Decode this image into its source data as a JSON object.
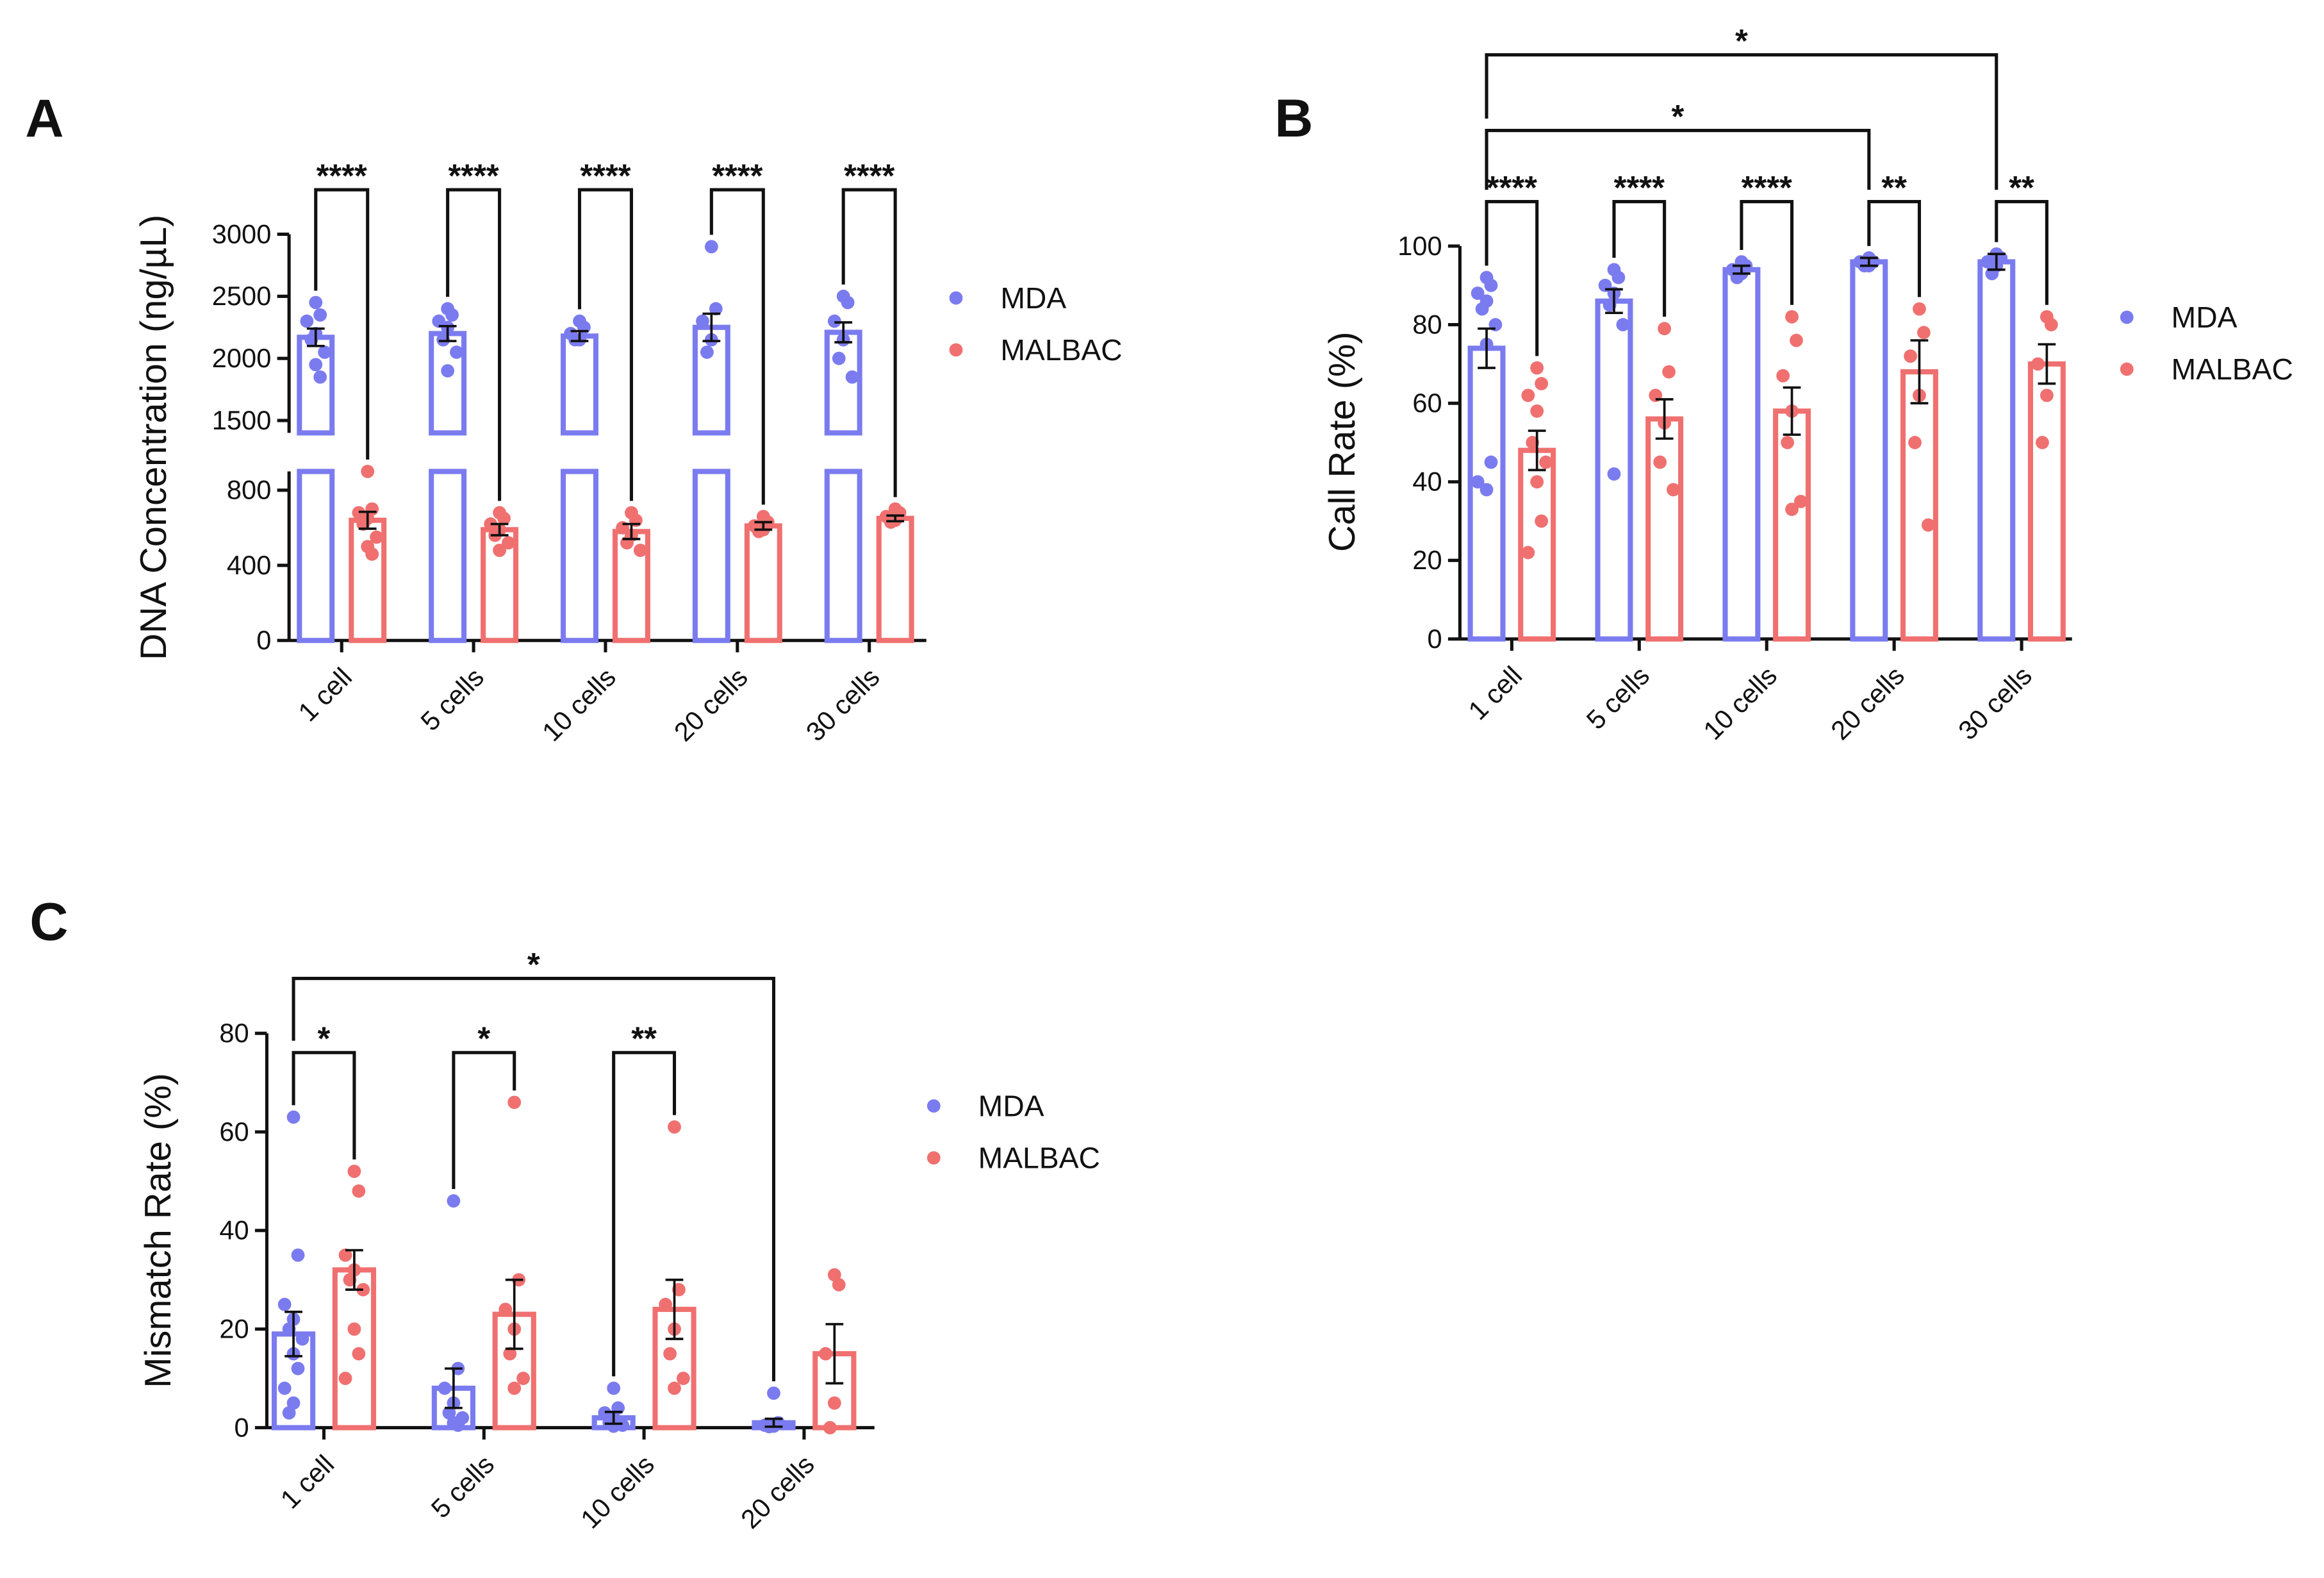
{
  "chart_data": [
    {
      "type": "bar",
      "title": "A",
      "y_label": "DNA Concentration (ng/µL)",
      "categories": [
        "1 cell",
        "5 cells",
        "10 cells",
        "20 cells",
        "30 cells"
      ],
      "ylim": [
        0,
        3000
      ],
      "ybreak": [
        900,
        1400
      ],
      "yticks": [
        0,
        400,
        800,
        1500,
        2000,
        2500,
        3000
      ],
      "series": [
        {
          "name": "MDA",
          "color": "#7b7bf0",
          "values": [
            2170,
            2200,
            2180,
            2250,
            2210
          ],
          "errors": [
            70,
            60,
            40,
            110,
            80
          ],
          "points": [
            [
              2450,
              2350,
              2300,
              2200,
              2150,
              2050,
              1950,
              1850
            ],
            [
              2400,
              2350,
              2300,
              2250,
              2150,
              2050,
              1900
            ],
            [
              2300,
              2250,
              2200,
              2150,
              2150
            ],
            [
              2900,
              2400,
              2300,
              2150,
              2050
            ],
            [
              2500,
              2450,
              2300,
              2150,
              2000,
              1850
            ]
          ]
        },
        {
          "name": "MALBAC",
          "color": "#f07070",
          "values": [
            640,
            590,
            580,
            610,
            650
          ],
          "errors": [
            45,
            30,
            40,
            20,
            15
          ],
          "points": [
            [
              900,
              700,
              680,
              650,
              620,
              550,
              500,
              460
            ],
            [
              680,
              650,
              620,
              590,
              560,
              520,
              480
            ],
            [
              680,
              640,
              600,
              560,
              520,
              480
            ],
            [
              660,
              630,
              610,
              590,
              580
            ],
            [
              700,
              680,
              660,
              640,
              630
            ]
          ]
        }
      ],
      "annotations": [
        {
          "text": "****",
          "category": "1 cell"
        },
        {
          "text": "****",
          "category": "5 cells"
        },
        {
          "text": "****",
          "category": "10 cells"
        },
        {
          "text": "****",
          "category": "20 cells"
        },
        {
          "text": "****",
          "category": "30 cells"
        }
      ]
    },
    {
      "type": "bar",
      "title": "B",
      "y_label": "Call Rate (%)",
      "categories": [
        "1 cell",
        "5 cells",
        "10 cells",
        "20 cells",
        "30 cells"
      ],
      "ylim": [
        0,
        100
      ],
      "yticks": [
        0,
        20,
        40,
        60,
        80,
        100
      ],
      "series": [
        {
          "name": "MDA",
          "color": "#7b7bf0",
          "values": [
            74,
            86,
            94,
            96,
            96
          ],
          "errors": [
            5,
            3,
            1,
            1,
            2
          ],
          "points": [
            [
              92,
              90,
              88,
              86,
              84,
              80,
              75,
              45,
              40,
              38
            ],
            [
              94,
              92,
              90,
              88,
              85,
              80,
              42
            ],
            [
              96,
              95,
              94,
              93,
              92
            ],
            [
              97,
              96,
              96,
              95,
              95
            ],
            [
              98,
              97,
              96,
              95,
              93
            ]
          ]
        },
        {
          "name": "MALBAC",
          "color": "#f07070",
          "values": [
            48,
            56,
            58,
            68,
            70
          ],
          "errors": [
            5,
            5,
            6,
            8,
            5
          ],
          "points": [
            [
              69,
              65,
              62,
              58,
              50,
              45,
              40,
              30,
              22
            ],
            [
              79,
              68,
              62,
              55,
              45,
              38
            ],
            [
              82,
              76,
              67,
              58,
              50,
              35,
              33
            ],
            [
              84,
              78,
              72,
              62,
              50,
              29
            ],
            [
              82,
              80,
              70,
              62,
              50
            ]
          ]
        }
      ],
      "annotations": [
        {
          "text": "****",
          "category": "1 cell"
        },
        {
          "text": "****",
          "category": "5 cells"
        },
        {
          "text": "****",
          "category": "10 cells"
        },
        {
          "text": "**",
          "category": "20 cells"
        },
        {
          "text": "**",
          "category": "30 cells"
        },
        {
          "text": "*",
          "from": "1 cell",
          "to": "20 cells"
        },
        {
          "text": "*",
          "from": "1 cell",
          "to": "30 cells"
        }
      ]
    },
    {
      "type": "bar",
      "title": "C",
      "y_label": "Mismatch Rate (%)",
      "categories": [
        "1 cell",
        "5 cells",
        "10 cells",
        "20 cells"
      ],
      "ylim": [
        0,
        80
      ],
      "yticks": [
        0,
        20,
        40,
        60,
        80
      ],
      "series": [
        {
          "name": "MDA",
          "color": "#7b7bf0",
          "values": [
            19,
            8,
            2,
            1
          ],
          "errors": [
            4.5,
            4,
            1.2,
            0.8
          ],
          "points": [
            [
              63,
              35,
              25,
              22,
              20,
              18,
              15,
              12,
              8,
              5,
              3
            ],
            [
              46,
              12,
              8,
              5,
              3,
              2,
              1,
              0.5
            ],
            [
              8,
              4,
              3,
              2,
              1,
              0.5,
              0.3
            ],
            [
              7,
              1,
              0.5,
              0.3,
              0.2
            ]
          ]
        },
        {
          "name": "MALBAC",
          "color": "#f07070",
          "values": [
            32,
            23,
            24,
            15
          ],
          "errors": [
            4,
            7,
            6,
            6
          ],
          "points": [
            [
              52,
              48,
              35,
              32,
              30,
              28,
              20,
              15,
              10
            ],
            [
              66,
              30,
              24,
              20,
              15,
              10,
              8
            ],
            [
              61,
              28,
              25,
              20,
              15,
              10,
              8
            ],
            [
              31,
              29,
              15,
              5,
              0
            ]
          ]
        }
      ],
      "annotations": [
        {
          "text": "*",
          "category": "1 cell"
        },
        {
          "text": "*",
          "category": "5 cells"
        },
        {
          "text": "**",
          "category": "10 cells"
        },
        {
          "text": "*",
          "from": "1 cell",
          "to": "20 cells"
        }
      ]
    }
  ]
}
